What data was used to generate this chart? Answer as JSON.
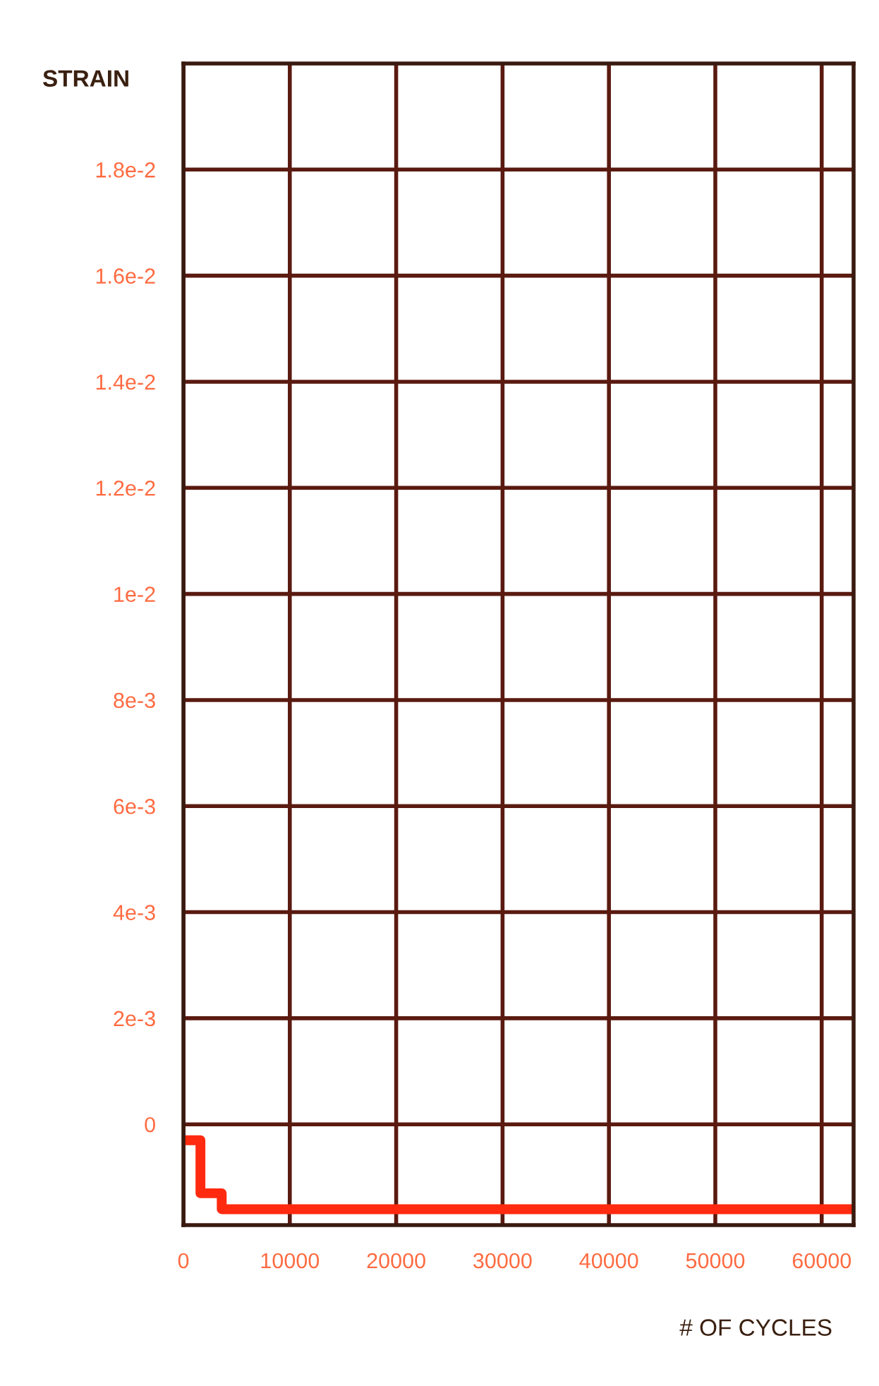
{
  "chart_data": {
    "type": "step",
    "xlabel": "# OF CYCLES",
    "ylabel": "STRAIN",
    "x": [
      0,
      1600,
      3600,
      63000
    ],
    "series": [
      {
        "color": "#ff2a10",
        "values": [
          -0.0003,
          -0.0013,
          -0.0016,
          -0.0016
        ]
      }
    ],
    "xlim": [
      0,
      63000
    ],
    "xticks": [
      0,
      10000,
      20000,
      30000,
      40000,
      50000,
      60000
    ],
    "ylim": [
      -0.0019,
      0.02
    ],
    "yticks": [
      {
        "value": 0,
        "label": "0"
      },
      {
        "value": 0.002,
        "label": "2e-3"
      },
      {
        "value": 0.004,
        "label": "4e-3"
      },
      {
        "value": 0.006,
        "label": "6e-3"
      },
      {
        "value": 0.008,
        "label": "8e-3"
      },
      {
        "value": 0.01,
        "label": "1e-2"
      },
      {
        "value": 0.012,
        "label": "1.2e-2"
      },
      {
        "value": 0.014,
        "label": "1.4e-2"
      },
      {
        "value": 0.016,
        "label": "1.6e-2"
      },
      {
        "value": 0.018,
        "label": "1.8e-2"
      }
    ],
    "grid": true,
    "line_style": "solid"
  }
}
